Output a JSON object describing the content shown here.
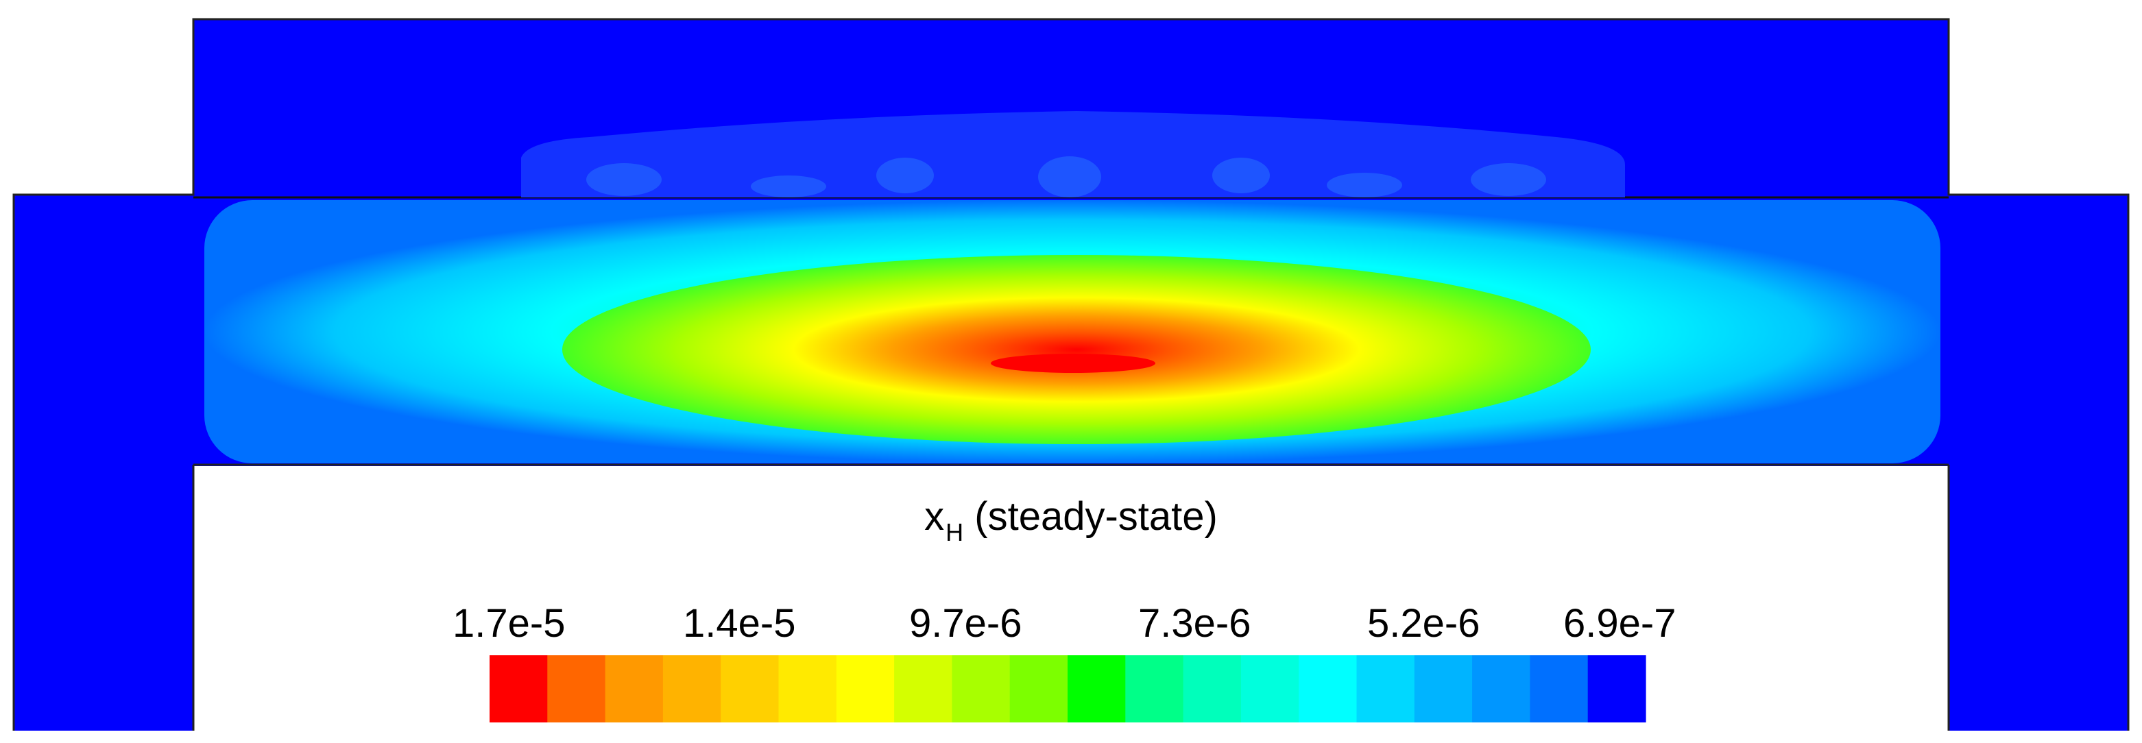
{
  "title": {
    "symbol": "x",
    "subscript": "H",
    "suffix": "(steady-state)"
  },
  "colorbar": {
    "labels": [
      "1.7e-5",
      "1.4e-5",
      "9.7e-6",
      "7.3e-6",
      "5.2e-6",
      "6.9e-7"
    ],
    "colors": [
      "#ff0000",
      "#ff6600",
      "#ff9900",
      "#ffb300",
      "#ffd000",
      "#ffea00",
      "#ffff00",
      "#d4ff00",
      "#a8ff00",
      "#7cff00",
      "#00ff00",
      "#00ff88",
      "#00ffbb",
      "#00ffdd",
      "#00ffff",
      "#00d8ff",
      "#00b4ff",
      "#0096ff",
      "#0070ff",
      "#0000ff"
    ]
  },
  "field_colors": {
    "background_min": "#0000ff",
    "mid_cyan": "#00ffff",
    "mid_green": "#00ff00",
    "mid_yellow": "#ffff00",
    "mid_orange": "#ff9900",
    "max_red": "#ff0000"
  }
}
